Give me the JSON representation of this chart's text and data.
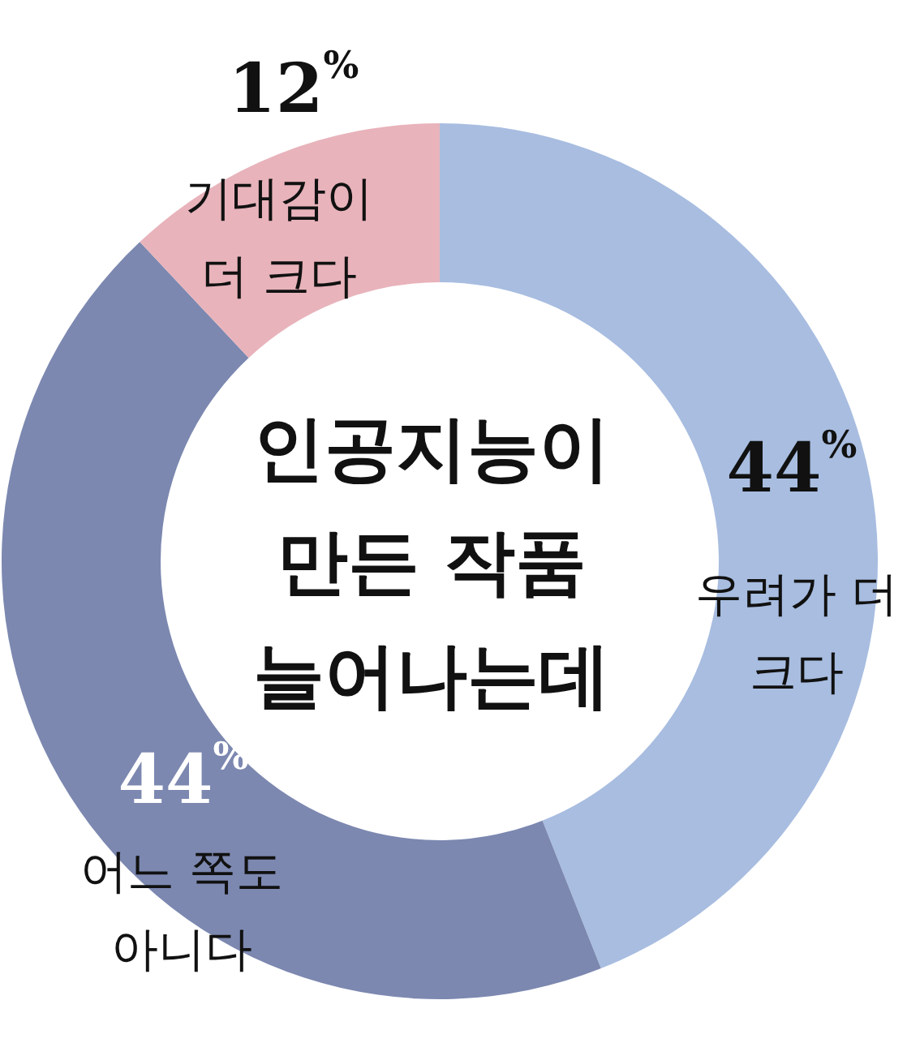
{
  "chart_data": {
    "type": "donut",
    "title": "인공지능이\n만든 작품\n늘어나는데",
    "categories": [
      "우려가 더\n크다",
      "어느 쪽도\n아니다",
      "기대감이\n더 크다"
    ],
    "values": [
      44,
      44,
      12
    ],
    "colors": [
      "#a8bde0",
      "#7c88b0",
      "#e8b3bb"
    ],
    "value_labels": [
      "44$^{%}$",
      "44$^{%}$",
      "12$^{%}$"
    ]
  }
}
